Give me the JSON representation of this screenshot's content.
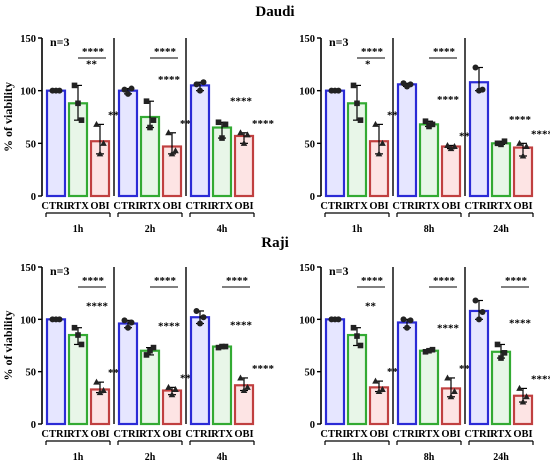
{
  "section_titles": [
    "Daudi",
    "Raji"
  ],
  "chart_data": [
    {
      "type": "bar",
      "section": "Daudi",
      "annotation": "n=3",
      "ylabel": "% of viability",
      "ylim": [
        0,
        150
      ],
      "yticks": [
        0,
        50,
        100,
        150
      ],
      "categories": [
        "CTRL",
        "RTX",
        "OBI"
      ],
      "colors": {
        "CTRL": "#2b2bd6",
        "RTX": "#33aa33",
        "OBI": "#c04040"
      },
      "groups": [
        {
          "label": "1h",
          "values": [
            100,
            88,
            52
          ],
          "points": [
            [
              100,
              100,
              100
            ],
            [
              105,
              88,
              72
            ],
            [
              68,
              40,
              50
            ]
          ],
          "stars_vs_ctrl": [
            "",
            "**",
            "****"
          ],
          "stars_bracket": "****"
        },
        {
          "label": "2h",
          "values": [
            100,
            75,
            47
          ],
          "points": [
            [
              101,
              97,
              102
            ],
            [
              90,
              65,
              72
            ],
            [
              60,
              40,
              43
            ]
          ],
          "stars_vs_ctrl": [
            "",
            "****",
            "****"
          ],
          "stars_bracket": "****"
        },
        {
          "label": "4h",
          "values": [
            105,
            65,
            57
          ],
          "points": [
            [
              106,
              100,
              108
            ],
            [
              70,
              55,
              68
            ],
            [
              60,
              50,
              58
            ]
          ],
          "stars_vs_ctrl": [
            "",
            "****",
            "****"
          ],
          "stars_bracket": ""
        }
      ]
    },
    {
      "type": "bar",
      "section": "Daudi",
      "annotation": "n=3",
      "ylabel": "",
      "ylim": [
        0,
        150
      ],
      "yticks": [
        0,
        50,
        100,
        150
      ],
      "categories": [
        "CTRL",
        "RTX",
        "OBI"
      ],
      "colors": {
        "CTRL": "#2b2bd6",
        "RTX": "#33aa33",
        "OBI": "#c04040"
      },
      "groups": [
        {
          "label": "1h",
          "values": [
            100,
            88,
            52
          ],
          "points": [
            [
              100,
              100,
              100
            ],
            [
              105,
              88,
              72
            ],
            [
              68,
              40,
              50
            ]
          ],
          "stars_vs_ctrl": [
            "",
            "*",
            "****"
          ],
          "stars_bracket": "****"
        },
        {
          "label": "8h",
          "values": [
            106,
            68,
            47
          ],
          "points": [
            [
              107,
              104,
              106
            ],
            [
              71,
              66,
              68
            ],
            [
              48,
              45,
              47
            ]
          ],
          "stars_vs_ctrl": [
            "",
            "****",
            "****"
          ],
          "stars_bracket": "****"
        },
        {
          "label": "24h",
          "values": [
            108,
            50,
            46
          ],
          "points": [
            [
              122,
              100,
              101
            ],
            [
              50,
              49,
              52
            ],
            [
              50,
              38,
              47
            ]
          ],
          "stars_vs_ctrl": [
            "",
            "****",
            "****"
          ],
          "stars_bracket": ""
        }
      ]
    },
    {
      "type": "bar",
      "section": "Raji",
      "annotation": "n=3",
      "ylabel": "% of viability",
      "ylim": [
        0,
        150
      ],
      "yticks": [
        0,
        50,
        100,
        150
      ],
      "categories": [
        "CTRL",
        "RTX",
        "OBI"
      ],
      "colors": {
        "CTRL": "#2b2bd6",
        "RTX": "#33aa33",
        "OBI": "#c04040"
      },
      "groups": [
        {
          "label": "1h",
          "values": [
            100,
            85,
            33
          ],
          "points": [
            [
              100,
              100,
              100
            ],
            [
              92,
              85,
              76
            ],
            [
              40,
              30,
              32
            ]
          ],
          "stars_vs_ctrl": [
            "",
            "****",
            "****"
          ],
          "stars_bracket": "****"
        },
        {
          "label": "2h",
          "values": [
            96,
            70,
            32
          ],
          "points": [
            [
              99,
              92,
              97
            ],
            [
              66,
              70,
              73
            ],
            [
              35,
              28,
              33
            ]
          ],
          "stars_vs_ctrl": [
            "",
            "****",
            "****"
          ],
          "stars_bracket": "****"
        },
        {
          "label": "4h",
          "values": [
            102,
            74,
            37
          ],
          "points": [
            [
              108,
              96,
              102
            ],
            [
              73,
              74,
              74
            ],
            [
              44,
              32,
              35
            ]
          ],
          "stars_vs_ctrl": [
            "",
            "****",
            "****"
          ],
          "stars_bracket": "****"
        }
      ]
    },
    {
      "type": "bar",
      "section": "Raji",
      "annotation": "n=3",
      "ylabel": "",
      "ylim": [
        0,
        150
      ],
      "yticks": [
        0,
        50,
        100,
        150
      ],
      "categories": [
        "CTRL",
        "RTX",
        "OBI"
      ],
      "colors": {
        "CTRL": "#2b2bd6",
        "RTX": "#33aa33",
        "OBI": "#c04040"
      },
      "groups": [
        {
          "label": "1h",
          "values": [
            100,
            85,
            35
          ],
          "points": [
            [
              100,
              100,
              100
            ],
            [
              92,
              84,
              75
            ],
            [
              41,
              31,
              33
            ]
          ],
          "stars_vs_ctrl": [
            "",
            "**",
            "****"
          ],
          "stars_bracket": "****"
        },
        {
          "label": "8h",
          "values": [
            97,
            70,
            34
          ],
          "points": [
            [
              100,
              92,
              99
            ],
            [
              69,
              70,
              71
            ],
            [
              44,
              26,
              31
            ]
          ],
          "stars_vs_ctrl": [
            "",
            "****",
            "****"
          ],
          "stars_bracket": "****"
        },
        {
          "label": "24h",
          "values": [
            108,
            69,
            27
          ],
          "points": [
            [
              118,
              100,
              107
            ],
            [
              76,
              63,
              68
            ],
            [
              34,
              21,
              26
            ]
          ],
          "stars_vs_ctrl": [
            "",
            "****",
            "****"
          ],
          "stars_bracket": "****"
        }
      ]
    }
  ]
}
